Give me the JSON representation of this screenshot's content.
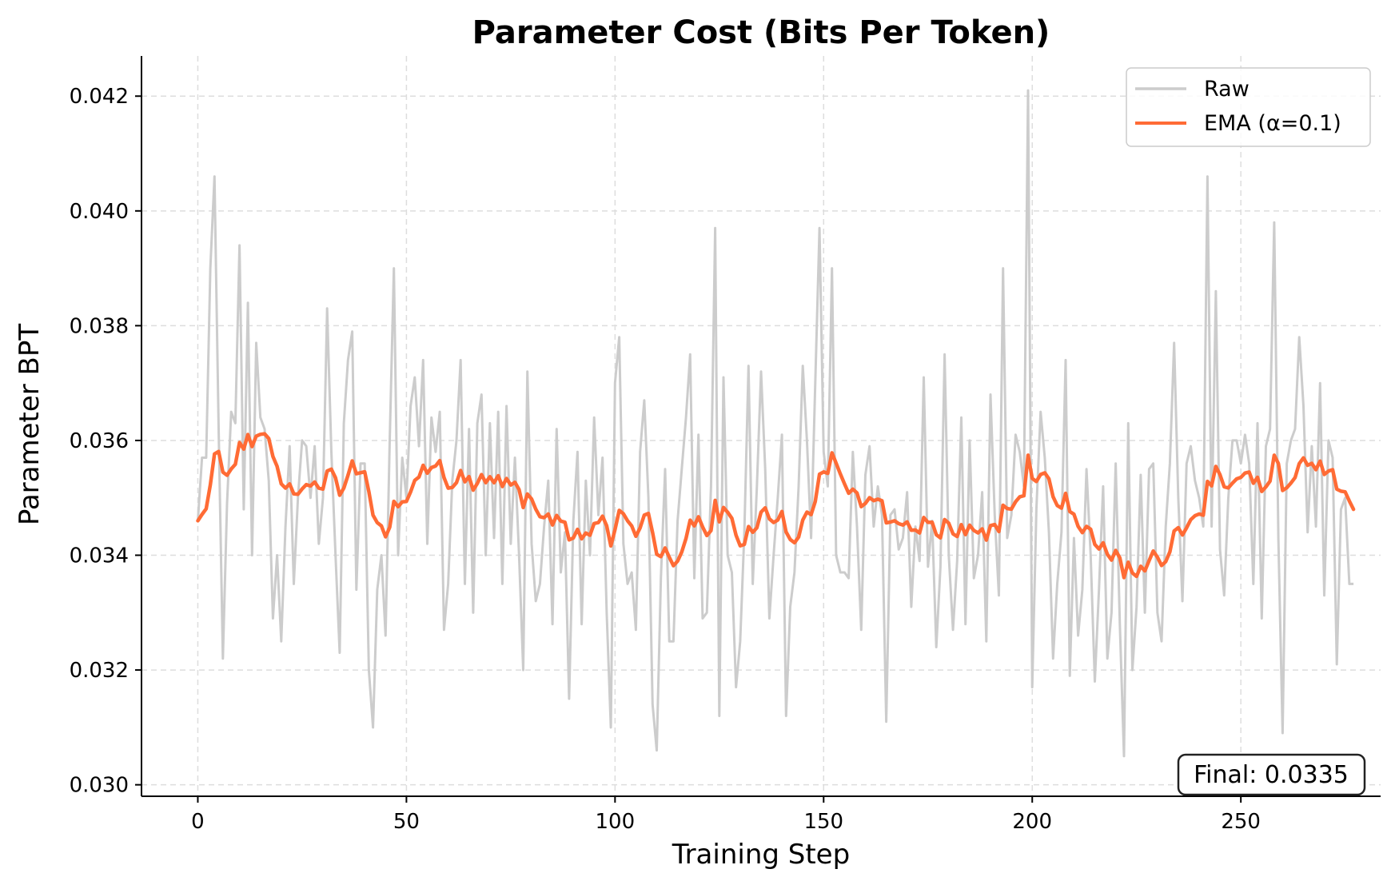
{
  "chart_data": {
    "type": "line",
    "title": "Parameter Cost (Bits Per Token)",
    "xlabel": "Training Step",
    "ylabel": "Parameter BPT",
    "xlim": [
      -13.5,
      283.5
    ],
    "ylim": [
      0.0298,
      0.0427
    ],
    "xticks": [
      0,
      50,
      100,
      150,
      200,
      250
    ],
    "yticks": [
      0.03,
      0.032,
      0.034,
      0.036,
      0.038,
      0.04,
      0.042
    ],
    "xtick_labels": [
      "0",
      "50",
      "100",
      "150",
      "200",
      "250"
    ],
    "ytick_labels": [
      "0.030",
      "0.032",
      "0.034",
      "0.036",
      "0.038",
      "0.040",
      "0.042"
    ],
    "grid": true,
    "legend_position": "top-right",
    "series": [
      {
        "name": "Raw",
        "color": "#cccccc",
        "x_start": 0,
        "x_step": 1,
        "values": [
          0.0346,
          0.0357,
          0.0357,
          0.039,
          0.0406,
          0.0362,
          0.0322,
          0.0349,
          0.0365,
          0.0363,
          0.0394,
          0.0348,
          0.0384,
          0.034,
          0.0377,
          0.0364,
          0.0362,
          0.0353,
          0.0329,
          0.034,
          0.0325,
          0.0345,
          0.0359,
          0.0335,
          0.035,
          0.036,
          0.0359,
          0.035,
          0.0359,
          0.0342,
          0.035,
          0.0383,
          0.0358,
          0.034,
          0.0323,
          0.0363,
          0.0374,
          0.0379,
          0.0334,
          0.0356,
          0.0356,
          0.032,
          0.031,
          0.0334,
          0.034,
          0.0326,
          0.036,
          0.039,
          0.034,
          0.0357,
          0.035,
          0.0366,
          0.0371,
          0.0359,
          0.0374,
          0.0342,
          0.0364,
          0.0358,
          0.0365,
          0.0327,
          0.0335,
          0.0353,
          0.036,
          0.0374,
          0.0335,
          0.0362,
          0.033,
          0.0363,
          0.0368,
          0.034,
          0.0363,
          0.0343,
          0.0365,
          0.0335,
          0.0366,
          0.0342,
          0.0357,
          0.034,
          0.032,
          0.0372,
          0.0342,
          0.0332,
          0.0335,
          0.0345,
          0.0353,
          0.0328,
          0.0362,
          0.0337,
          0.0344,
          0.0315,
          0.0346,
          0.0358,
          0.0328,
          0.0353,
          0.034,
          0.0364,
          0.0347,
          0.0357,
          0.033,
          0.031,
          0.037,
          0.0378,
          0.0342,
          0.0335,
          0.0337,
          0.0327,
          0.0358,
          0.0367,
          0.035,
          0.0314,
          0.0306,
          0.0336,
          0.0355,
          0.0325,
          0.0325,
          0.0346,
          0.0355,
          0.0364,
          0.0375,
          0.0336,
          0.0361,
          0.0329,
          0.033,
          0.0352,
          0.0397,
          0.0312,
          0.0371,
          0.034,
          0.0337,
          0.0317,
          0.0325,
          0.0344,
          0.0373,
          0.0335,
          0.0352,
          0.0372,
          0.0355,
          0.0329,
          0.034,
          0.035,
          0.0361,
          0.0312,
          0.0331,
          0.0337,
          0.0352,
          0.0373,
          0.036,
          0.0343,
          0.037,
          0.0397,
          0.0358,
          0.0352,
          0.039,
          0.034,
          0.0337,
          0.0337,
          0.0336,
          0.0358,
          0.0345,
          0.0327,
          0.0354,
          0.0359,
          0.0345,
          0.0352,
          0.0347,
          0.0311,
          0.0347,
          0.0348,
          0.0341,
          0.0343,
          0.0351,
          0.0331,
          0.0345,
          0.0339,
          0.0371,
          0.0338,
          0.0346,
          0.0324,
          0.0338,
          0.0375,
          0.034,
          0.0327,
          0.0339,
          0.0364,
          0.0328,
          0.036,
          0.0336,
          0.034,
          0.0351,
          0.0325,
          0.0368,
          0.0347,
          0.0333,
          0.039,
          0.0343,
          0.0347,
          0.0361,
          0.0358,
          0.0352,
          0.0421,
          0.0317,
          0.0348,
          0.0365,
          0.0357,
          0.0344,
          0.0322,
          0.0335,
          0.0344,
          0.0374,
          0.0319,
          0.0343,
          0.0326,
          0.0334,
          0.0355,
          0.034,
          0.0318,
          0.0334,
          0.0352,
          0.0322,
          0.033,
          0.0356,
          0.0328,
          0.0305,
          0.0363,
          0.032,
          0.0331,
          0.0354,
          0.033,
          0.0355,
          0.0356,
          0.033,
          0.0325,
          0.0345,
          0.0356,
          0.0377,
          0.035,
          0.0332,
          0.0356,
          0.0359,
          0.0353,
          0.035,
          0.0345,
          0.0406,
          0.0345,
          0.0386,
          0.0341,
          0.0333,
          0.035,
          0.036,
          0.036,
          0.0356,
          0.0361,
          0.0356,
          0.0335,
          0.0363,
          0.0329,
          0.0359,
          0.0362,
          0.0398,
          0.0343,
          0.0309,
          0.0356,
          0.036,
          0.0362,
          0.0378,
          0.0366,
          0.0344,
          0.0359,
          0.0345,
          0.037,
          0.0333,
          0.036,
          0.0357,
          0.0321,
          0.0348,
          0.035,
          0.0335,
          0.0335
        ]
      },
      {
        "name": "EMA (α=0.1)",
        "color": "#ff6b35",
        "derived_from": "Raw",
        "alpha": 0.1
      }
    ],
    "annotation": "Final: 0.0335"
  }
}
